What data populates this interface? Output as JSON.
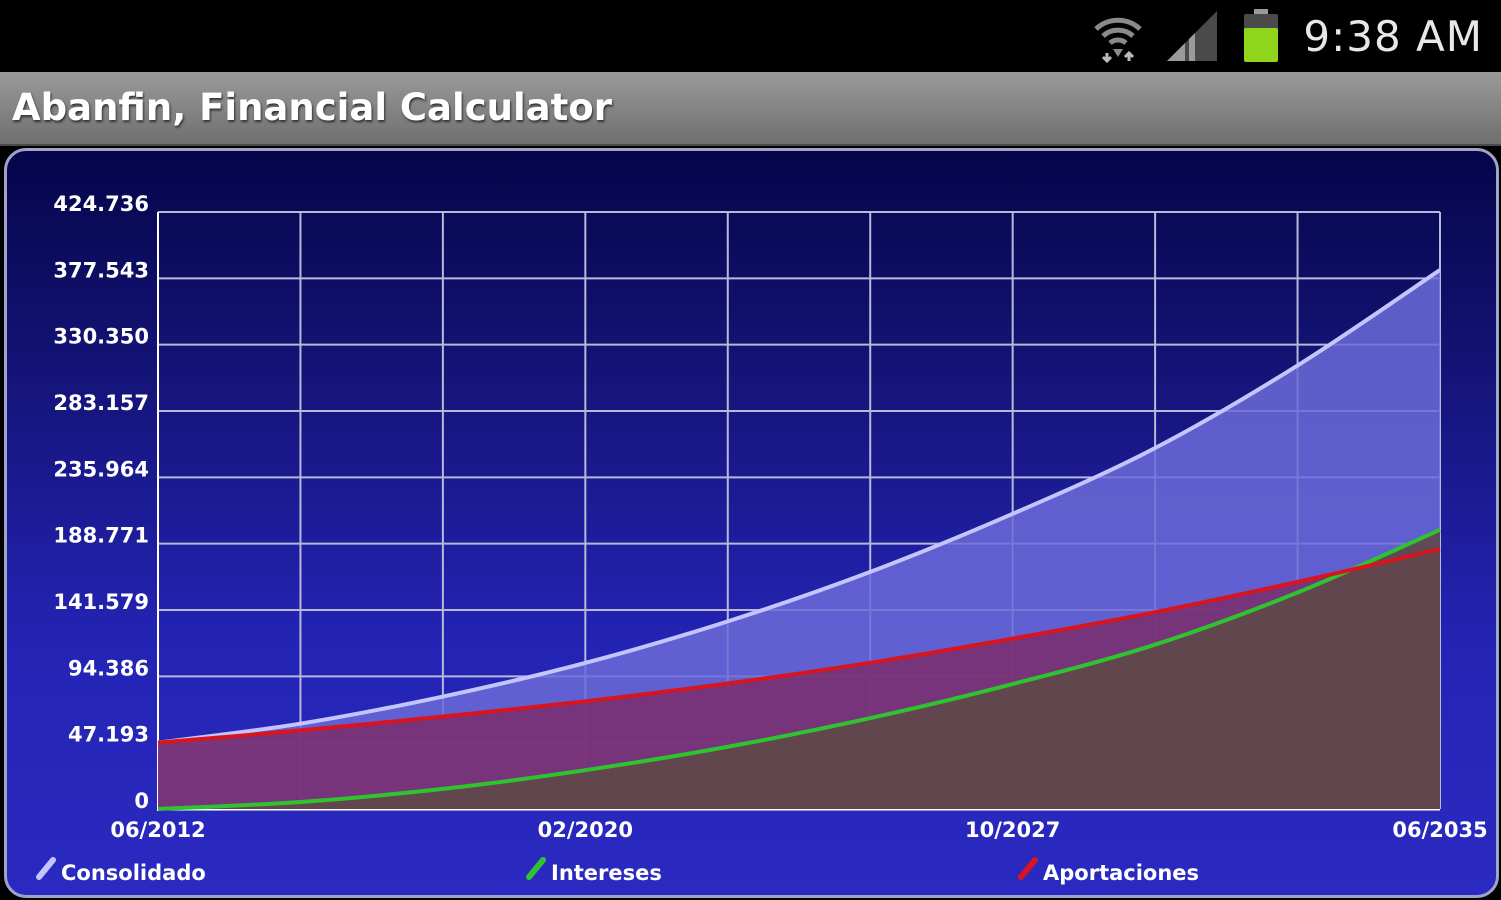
{
  "status_bar": {
    "time": "9:38 AM",
    "icons": [
      "wifi-icon",
      "signal-icon",
      "battery-icon"
    ],
    "battery_color": "#8fd51c"
  },
  "app": {
    "title": "Abanfin, Financial Calculator"
  },
  "chart_data": {
    "type": "area",
    "title": "",
    "xlabel": "",
    "ylabel": "",
    "x_range": [
      2012.417,
      2035.417
    ],
    "ylim": [
      0,
      424.736
    ],
    "y_ticks": [
      0,
      47.193,
      94.386,
      141.579,
      188.771,
      235.964,
      283.157,
      330.35,
      377.543,
      424.736
    ],
    "y_tick_labels": [
      "0",
      "47.193",
      "94.386",
      "141.579",
      "188.771",
      "235.964",
      "283.157",
      "330.350",
      "377.543",
      "424.736"
    ],
    "x_tick_labels": [
      {
        "value": 2012.417,
        "label": "06/2012"
      },
      {
        "value": 2020.083,
        "label": "02/2020"
      },
      {
        "value": 2027.75,
        "label": "10/2027"
      },
      {
        "value": 2035.417,
        "label": "06/2035"
      }
    ],
    "grid": true,
    "legend_position": "bottom",
    "series": [
      {
        "name": "Consolidado",
        "color": "#c4c4ff",
        "fill": "#6b6bd8",
        "x": [
          2012.417,
          2014.97,
          2017.53,
          2020.08,
          2022.64,
          2025.19,
          2027.75,
          2030.31,
          2032.86,
          2035.417
        ],
        "values": [
          47.2,
          60.7,
          80.0,
          103.9,
          133.5,
          168.6,
          210.0,
          256.9,
          315.5,
          383.5
        ]
      },
      {
        "name": "Intereses",
        "color": "#2fc42f",
        "fill": "#5e4848",
        "x": [
          2012.417,
          2014.97,
          2017.53,
          2020.08,
          2022.64,
          2025.19,
          2027.75,
          2030.31,
          2032.86,
          2035.417
        ],
        "values": [
          0,
          5.0,
          14.3,
          27.6,
          44.3,
          64.6,
          88.9,
          117.0,
          154.0,
          198.6
        ]
      },
      {
        "name": "Aportaciones",
        "color": "#d8141e",
        "fill": "#7a3070",
        "x": [
          2012.417,
          2014.97,
          2017.53,
          2020.08,
          2022.64,
          2025.19,
          2027.75,
          2030.31,
          2032.86,
          2035.417
        ],
        "values": [
          47.2,
          55.9,
          65.8,
          76.6,
          89.3,
          104.0,
          121.2,
          140.1,
          161.5,
          184.9
        ]
      }
    ]
  }
}
